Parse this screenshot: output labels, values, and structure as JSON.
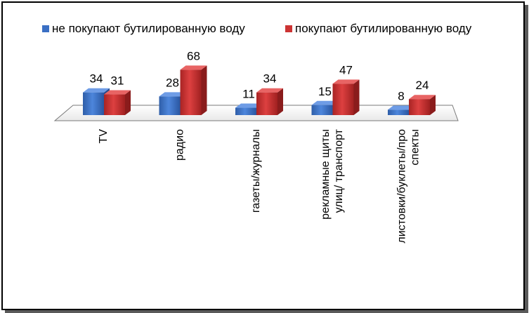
{
  "chart_data": {
    "type": "bar",
    "title": "",
    "xlabel": "",
    "ylabel": "",
    "ylim": [
      0,
      70
    ],
    "grid": false,
    "legend_position": "top",
    "categories": [
      [
        "TV"
      ],
      [
        "радио"
      ],
      [
        "газеты/журналы"
      ],
      [
        "рекламные щиты",
        "улиц/ транспорт"
      ],
      [
        "листовки/буклеты/про",
        "спекты"
      ]
    ],
    "series": [
      {
        "name": "не покупают бутилированную воду",
        "values": [
          34,
          28,
          11,
          15,
          8
        ],
        "color": "#3a6fc4"
      },
      {
        "name": "покупают бутилированную воду",
        "values": [
          31,
          68,
          34,
          47,
          24
        ],
        "color": "#cc3333"
      }
    ]
  }
}
